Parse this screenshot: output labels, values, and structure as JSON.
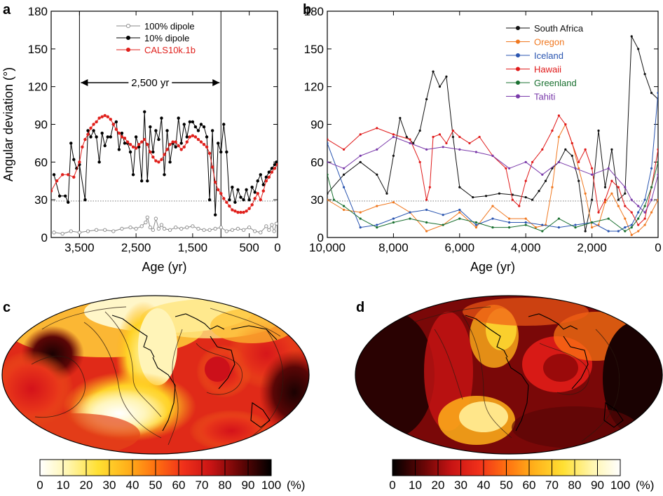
{
  "figure": {
    "panels": [
      {
        "letter": "a"
      },
      {
        "letter": "b"
      },
      {
        "letter": "c"
      },
      {
        "letter": "d"
      }
    ]
  },
  "chart_data": [
    {
      "panel": "a",
      "type": "line",
      "xlabel": "Age (yr)",
      "ylabel": "Angular deviation (°)",
      "xlim": [
        4000,
        0
      ],
      "ylim": [
        0,
        180
      ],
      "x_ticks": [
        3500,
        2500,
        1500,
        500,
        0
      ],
      "x_tick_labels": [
        "3,500",
        "2,500",
        "1,500",
        "500",
        "0"
      ],
      "y_ticks": [
        0,
        30,
        60,
        90,
        120,
        150,
        180
      ],
      "y_tick_labels": [
        "0",
        "30",
        "60",
        "90",
        "120",
        "150",
        "180"
      ],
      "reference_line": 29,
      "span": {
        "x0": 3500,
        "x1": 1000,
        "label": "2,500 yr"
      },
      "legend_position": "top-right",
      "series": [
        {
          "name": "100% dipole",
          "color": "#888888",
          "marker": "open-circle",
          "x": [
            3950,
            3800,
            3650,
            3500,
            3350,
            3200,
            3050,
            2900,
            2750,
            2600,
            2500,
            2400,
            2330,
            2300,
            2250,
            2200,
            2150,
            2100,
            2050,
            2000,
            1900,
            1800,
            1700,
            1600,
            1500,
            1400,
            1300,
            1200,
            1100,
            1000,
            900,
            800,
            700,
            600,
            500,
            400,
            300,
            200,
            150,
            100,
            60,
            20
          ],
          "y": [
            4,
            3,
            5,
            4,
            5,
            6,
            6,
            5,
            7,
            8,
            7,
            9,
            12,
            16,
            8,
            6,
            15,
            7,
            10,
            7,
            6,
            8,
            7,
            8,
            9,
            7,
            6,
            6,
            7,
            8,
            5,
            6,
            7,
            6,
            8,
            5,
            4,
            9,
            6,
            10,
            5,
            11
          ]
        },
        {
          "name": "10% dipole",
          "color": "#000000",
          "marker": "filled-circle",
          "x": [
            3950,
            3850,
            3750,
            3700,
            3650,
            3600,
            3550,
            3500,
            3400,
            3350,
            3300,
            3250,
            3200,
            3150,
            3100,
            3050,
            3000,
            2950,
            2900,
            2850,
            2800,
            2750,
            2700,
            2650,
            2600,
            2550,
            2500,
            2450,
            2400,
            2350,
            2300,
            2250,
            2200,
            2150,
            2100,
            2050,
            2000,
            1950,
            1900,
            1850,
            1800,
            1750,
            1700,
            1650,
            1600,
            1550,
            1500,
            1450,
            1400,
            1350,
            1300,
            1250,
            1200,
            1150,
            1100,
            1050,
            1000,
            950,
            900,
            850,
            800,
            750,
            700,
            650,
            600,
            550,
            500,
            450,
            400,
            350,
            300,
            250,
            200,
            150,
            100,
            50,
            20
          ],
          "y": [
            50,
            33,
            33,
            28,
            75,
            62,
            55,
            58,
            30,
            85,
            80,
            85,
            80,
            60,
            83,
            73,
            80,
            80,
            90,
            92,
            70,
            83,
            75,
            75,
            68,
            50,
            80,
            72,
            45,
            100,
            45,
            88,
            68,
            85,
            78,
            95,
            50,
            85,
            60,
            75,
            72,
            95,
            75,
            90,
            80,
            92,
            92,
            88,
            85,
            90,
            88,
            80,
            30,
            85,
            18,
            75,
            68,
            90,
            68,
            30,
            40,
            28,
            38,
            32,
            30,
            38,
            30,
            40,
            36,
            45,
            50,
            42,
            48,
            52,
            55,
            58,
            60
          ]
        },
        {
          "name": "CALS10k.1b",
          "color": "#e0201c",
          "marker": "filled-circle",
          "x": [
            4000,
            3900,
            3800,
            3700,
            3600,
            3500,
            3450,
            3400,
            3350,
            3300,
            3250,
            3200,
            3150,
            3100,
            3050,
            3000,
            2950,
            2900,
            2850,
            2800,
            2750,
            2700,
            2650,
            2600,
            2550,
            2500,
            2450,
            2400,
            2350,
            2300,
            2250,
            2200,
            2150,
            2100,
            2050,
            2000,
            1950,
            1900,
            1850,
            1800,
            1750,
            1700,
            1650,
            1600,
            1550,
            1500,
            1450,
            1400,
            1350,
            1300,
            1250,
            1200,
            1150,
            1100,
            1050,
            1000,
            950,
            900,
            850,
            800,
            750,
            700,
            650,
            600,
            550,
            500,
            450,
            400,
            350,
            300,
            250,
            200,
            150,
            100,
            50,
            0
          ],
          "y": [
            37,
            45,
            50,
            50,
            48,
            60,
            72,
            78,
            82,
            87,
            90,
            92,
            95,
            96,
            97,
            96,
            94,
            90,
            86,
            83,
            80,
            79,
            76,
            74,
            72,
            71,
            74,
            76,
            78,
            74,
            68,
            64,
            61,
            60,
            62,
            66,
            70,
            74,
            76,
            76,
            73,
            70,
            72,
            76,
            80,
            81,
            80,
            78,
            76,
            74,
            72,
            67,
            56,
            44,
            38,
            35,
            31,
            28,
            25,
            22,
            21,
            20,
            20,
            20,
            21,
            23,
            26,
            31,
            35,
            30,
            37,
            45,
            48,
            52,
            55,
            58
          ]
        }
      ]
    },
    {
      "panel": "b",
      "type": "line",
      "xlabel": "Age (yr)",
      "ylabel": "",
      "xlim": [
        10000,
        0
      ],
      "ylim": [
        0,
        180
      ],
      "x_ticks": [
        10000,
        8000,
        6000,
        4000,
        2000,
        0
      ],
      "x_tick_labels": [
        "10,000",
        "8,000",
        "6,000",
        "4,000",
        "2,000",
        "0"
      ],
      "y_ticks": [
        0,
        30,
        60,
        90,
        120,
        150,
        180
      ],
      "y_tick_labels": [
        "0",
        "30",
        "60",
        "90",
        "120",
        "150",
        "180"
      ],
      "reference_line": 29,
      "legend_position": "top-right",
      "series": [
        {
          "name": "South Africa",
          "color": "#111111",
          "x": [
            10000,
            9500,
            9000,
            8500,
            8200,
            8000,
            7800,
            7600,
            7400,
            7200,
            7000,
            6800,
            6600,
            6400,
            6200,
            6000,
            5600,
            5200,
            4800,
            4400,
            4000,
            3800,
            3600,
            3400,
            3200,
            3000,
            2800,
            2600,
            2400,
            2200,
            2000,
            1800,
            1600,
            1400,
            1200,
            1000,
            800,
            600,
            400,
            200,
            0
          ],
          "y": [
            35,
            50,
            60,
            50,
            35,
            65,
            95,
            80,
            75,
            85,
            110,
            132,
            120,
            128,
            80,
            40,
            32,
            33,
            35,
            34,
            32,
            30,
            37,
            45,
            55,
            60,
            70,
            65,
            45,
            5,
            30,
            85,
            40,
            70,
            30,
            35,
            160,
            150,
            130,
            115,
            110
          ]
        },
        {
          "name": "Oregon",
          "color": "#f07820",
          "x": [
            10000,
            9500,
            9000,
            8500,
            8000,
            7500,
            7000,
            6500,
            6000,
            5500,
            5000,
            4500,
            4000,
            3700,
            3400,
            3200,
            3000,
            2800,
            2600,
            2400,
            2200,
            2000,
            1800,
            1600,
            1400,
            1200,
            1000,
            800,
            600,
            400,
            200,
            0
          ],
          "y": [
            30,
            22,
            20,
            25,
            28,
            20,
            5,
            10,
            20,
            8,
            25,
            15,
            15,
            8,
            10,
            40,
            80,
            90,
            75,
            55,
            35,
            8,
            10,
            28,
            35,
            25,
            15,
            2,
            5,
            10,
            20,
            30
          ]
        },
        {
          "name": "Iceland",
          "color": "#2a55b0",
          "x": [
            10000,
            9500,
            9000,
            8500,
            8000,
            7500,
            7000,
            6500,
            6000,
            5500,
            5000,
            4500,
            4000,
            3500,
            3000,
            2500,
            2000,
            1500,
            1200,
            1000,
            800,
            600,
            400,
            200,
            0
          ],
          "y": [
            75,
            40,
            8,
            10,
            15,
            20,
            22,
            18,
            22,
            10,
            15,
            12,
            12,
            10,
            8,
            10,
            12,
            5,
            5,
            8,
            10,
            20,
            30,
            55,
            115
          ]
        },
        {
          "name": "Hawaii",
          "color": "#e01a1a",
          "x": [
            10000,
            9500,
            9000,
            8500,
            8000,
            7500,
            7200,
            7000,
            6900,
            6800,
            6600,
            6400,
            6200,
            6000,
            5700,
            5400,
            5000,
            4600,
            4400,
            4200,
            4000,
            3800,
            3500,
            3200,
            3000,
            2800,
            2600,
            2400,
            2200,
            2000,
            1800,
            1600,
            1400,
            1200,
            1000,
            800,
            600,
            400,
            200,
            0
          ],
          "y": [
            78,
            70,
            82,
            87,
            82,
            78,
            60,
            30,
            40,
            80,
            82,
            75,
            85,
            80,
            75,
            80,
            65,
            55,
            30,
            25,
            45,
            60,
            70,
            85,
            97,
            90,
            75,
            60,
            70,
            55,
            20,
            30,
            45,
            40,
            25,
            20,
            10,
            15,
            40,
            70
          ]
        },
        {
          "name": "Greenland",
          "color": "#1a7030",
          "x": [
            10000,
            9800,
            9500,
            9000,
            8500,
            8000,
            7500,
            7000,
            6500,
            6000,
            5500,
            5000,
            4500,
            4000,
            3500,
            3000,
            2500,
            2000,
            1500,
            1000,
            800,
            600,
            400,
            200,
            0
          ],
          "y": [
            50,
            30,
            25,
            15,
            8,
            12,
            15,
            12,
            10,
            15,
            12,
            8,
            8,
            10,
            5,
            15,
            8,
            12,
            15,
            5,
            8,
            15,
            25,
            40,
            60
          ]
        },
        {
          "name": "Tahiti",
          "color": "#7a3aaa",
          "x": [
            10000,
            9500,
            9000,
            8500,
            8000,
            7500,
            7000,
            6500,
            6000,
            5500,
            5000,
            4500,
            4000,
            3500,
            3000,
            2500,
            2000,
            1500,
            1000,
            800,
            600,
            400,
            200,
            0
          ],
          "y": [
            60,
            55,
            65,
            70,
            80,
            75,
            70,
            72,
            70,
            68,
            65,
            55,
            60,
            50,
            60,
            55,
            50,
            55,
            40,
            30,
            25,
            20,
            30,
            50
          ]
        }
      ]
    },
    {
      "panel": "c",
      "type": "heatmap",
      "projection": "mollweide",
      "colorbar_ticks": [
        "0",
        "10",
        "20",
        "30",
        "40",
        "50",
        "60",
        "70",
        "80",
        "90",
        "100"
      ],
      "colorbar_unit": "(%)",
      "colorscale": [
        "#ffffff",
        "#fff2a8",
        "#ffe033",
        "#ffb21a",
        "#ff7a0f",
        "#ff3b1a",
        "#e41a1a",
        "#b20e10",
        "#7a0808",
        "#3a0404",
        "#000000"
      ]
    },
    {
      "panel": "d",
      "type": "heatmap",
      "projection": "mollweide",
      "colorbar_ticks": [
        "0",
        "10",
        "20",
        "30",
        "40",
        "50",
        "60",
        "70",
        "80",
        "90",
        "100"
      ],
      "colorbar_unit": "(%)",
      "colorscale": [
        "#000000",
        "#3a0404",
        "#7a0808",
        "#b20e10",
        "#e41a1a",
        "#ff3b1a",
        "#ff7a0f",
        "#ffb21a",
        "#ffe033",
        "#fff2a8",
        "#ffffff"
      ]
    }
  ]
}
